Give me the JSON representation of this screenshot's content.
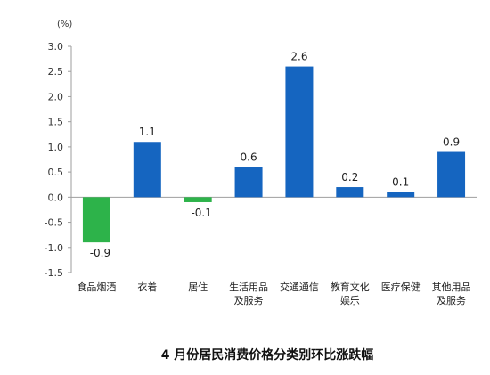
{
  "chart_data": {
    "type": "bar",
    "title": "4 月份居民消费价格分类别环比涨跌幅",
    "unit_label": "(%)",
    "categories": [
      [
        "食品烟酒"
      ],
      [
        "衣着"
      ],
      [
        "居住"
      ],
      [
        "生活用品",
        "及服务"
      ],
      [
        "交通通信"
      ],
      [
        "教育文化",
        "娱乐"
      ],
      [
        "医疗保健"
      ],
      [
        "其他用品",
        "及服务"
      ]
    ],
    "values": [
      -0.9,
      1.1,
      -0.1,
      0.6,
      2.6,
      0.2,
      0.1,
      0.9
    ],
    "value_labels": [
      "-0.9",
      "1.1",
      "-0.1",
      "0.6",
      "2.6",
      "0.2",
      "0.1",
      "0.9"
    ],
    "ylim": [
      -1.5,
      3.0
    ],
    "yticks": [
      3.0,
      2.5,
      2.0,
      1.5,
      1.0,
      0.5,
      0.0,
      -0.5,
      -1.0,
      -1.5
    ],
    "ytick_labels": [
      "3.0",
      "2.5",
      "2.0",
      "1.5",
      "1.0",
      "0.5",
      "0.0",
      "-0.5",
      "-1.0",
      "-1.5"
    ],
    "grid": false,
    "colors": {
      "positive": "#1565c0",
      "negative": "#2db34a",
      "axis": "#9e9e9e"
    }
  }
}
